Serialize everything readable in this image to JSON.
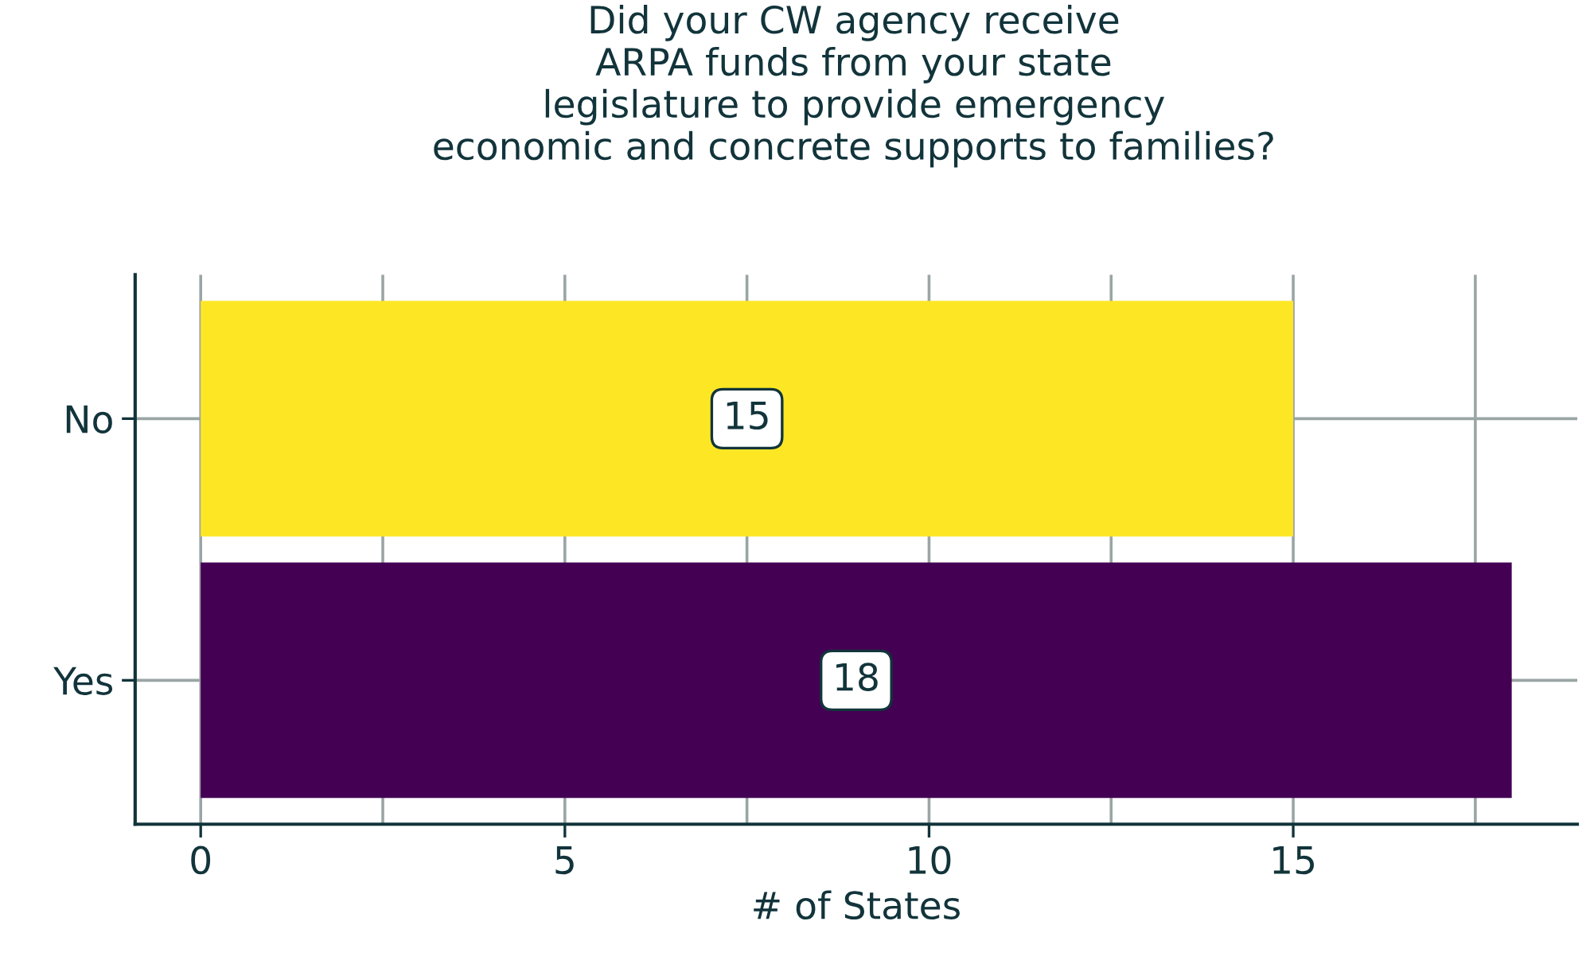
{
  "chart_data": {
    "type": "bar",
    "orientation": "horizontal",
    "title": "Did your CW agency receive\nARPA funds from your state\nlegislature to provide emergency\neconomic and concrete supports to families?",
    "xlabel": "# of States",
    "categories": [
      "No",
      "Yes"
    ],
    "values": [
      15,
      18
    ],
    "colors": [
      "#fde725",
      "#440154"
    ],
    "xlim": [
      -0.9,
      18.9
    ],
    "xticks": [
      0,
      {
        "value": 2.5,
        "label": null
      },
      5,
      {
        "value": 7.5,
        "label": null
      },
      10,
      {
        "value": 12.5,
        "label": null
      },
      15,
      {
        "value": 17.5,
        "label": null
      }
    ],
    "grid": true,
    "data_labels": true
  }
}
